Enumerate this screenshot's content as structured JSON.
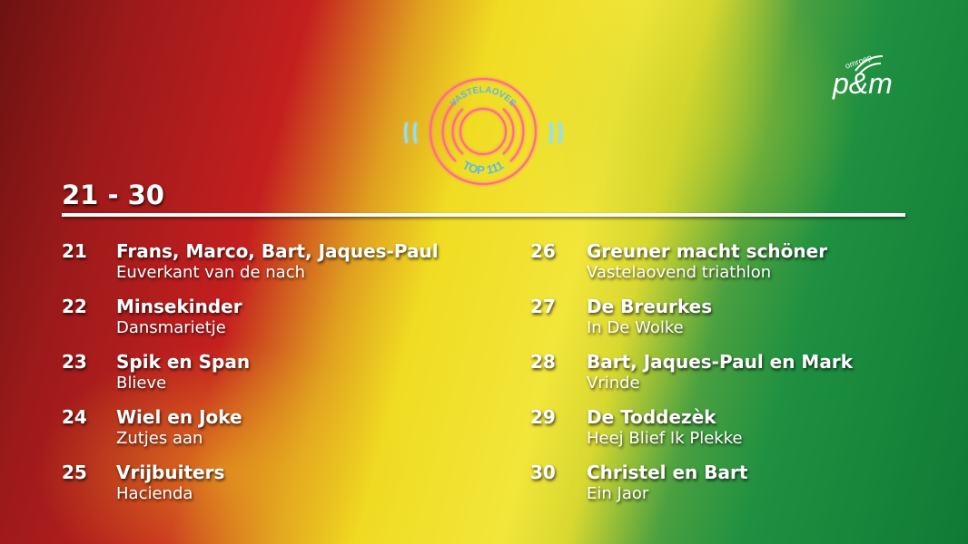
{
  "header": {
    "title": "21 - 30"
  },
  "logo": {
    "line1": "VASTELAOVES",
    "line2": "TOP 111"
  },
  "broadcaster": {
    "small": "omroep",
    "name": "p&m"
  },
  "entries": [
    {
      "rank": "21",
      "artist": "Frans, Marco, Bart, Jaques-Paul",
      "song": "Euverkant van de nach"
    },
    {
      "rank": "22",
      "artist": "Minsekinder",
      "song": "Dansmarietje"
    },
    {
      "rank": "23",
      "artist": "Spik en Span",
      "song": "Blieve"
    },
    {
      "rank": "24",
      "artist": "Wiel en Joke",
      "song": "Zutjes aan"
    },
    {
      "rank": "25",
      "artist": "Vrijbuiters",
      "song": "Hacienda"
    },
    {
      "rank": "26",
      "artist": "Greuner macht schöner",
      "song": "Vastelaovend triathlon"
    },
    {
      "rank": "27",
      "artist": "De Breurkes",
      "song": "In De Wolke"
    },
    {
      "rank": "28",
      "artist": "Bart, Jaques-Paul en Mark",
      "song": "Vrinde"
    },
    {
      "rank": "29",
      "artist": "De Toddezèk",
      "song": "Heej Blief Ik Plekke"
    },
    {
      "rank": "30",
      "artist": "Christel en Bart",
      "song": "Ein Jaor"
    }
  ]
}
